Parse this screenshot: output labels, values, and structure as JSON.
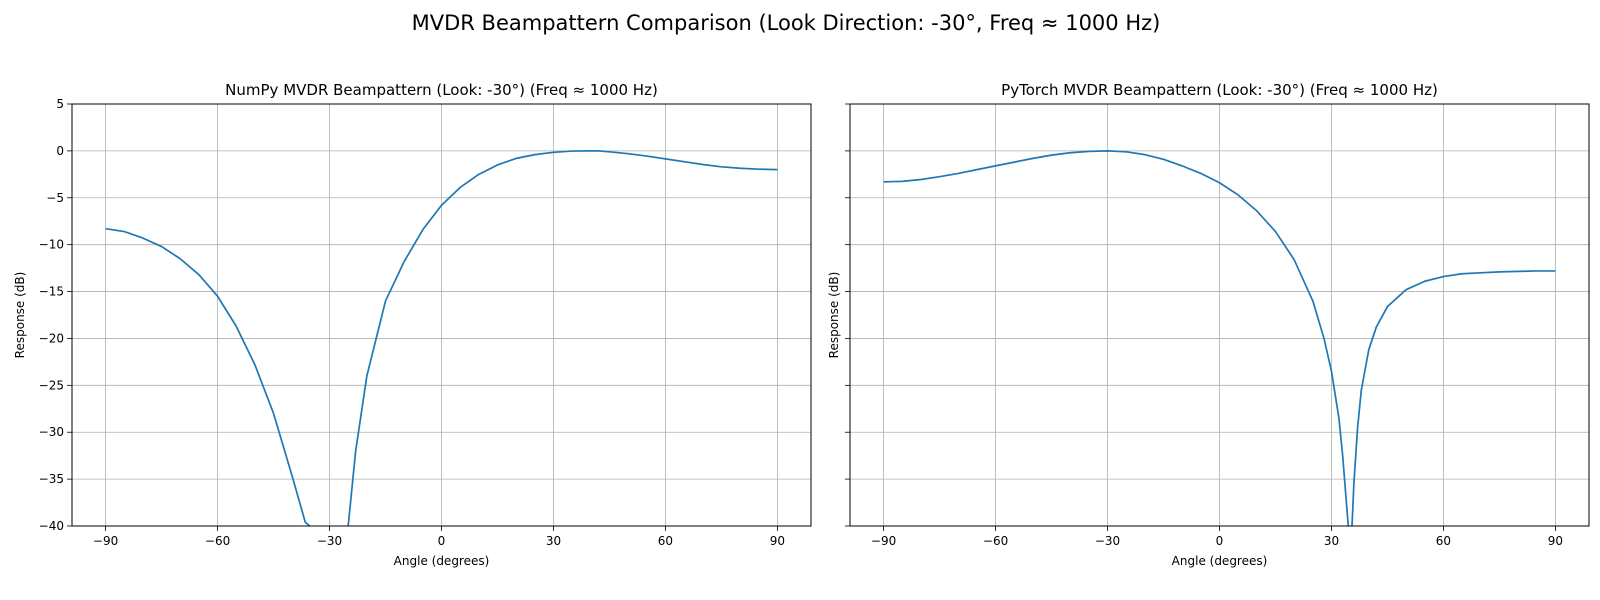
{
  "figure": {
    "title": "MVDR Beampattern Comparison (Look Direction: -30°, Freq ≈ 1000 Hz)"
  },
  "chart_data": [
    {
      "type": "line",
      "title": "NumPy MVDR Beampattern (Look: -30°) (Freq ≈ 1000 Hz)",
      "xlabel": "Angle (degrees)",
      "ylabel": "Response (dB)",
      "xlim": [
        -99,
        99
      ],
      "ylim": [
        -40,
        5
      ],
      "xticks": [
        -90,
        -60,
        -30,
        0,
        30,
        60,
        90
      ],
      "xtick_labels": [
        "−90",
        "−60",
        "−30",
        "0",
        "30",
        "60",
        "90"
      ],
      "yticks": [
        5,
        0,
        -5,
        -10,
        -15,
        -20,
        -25,
        -30,
        -35,
        -40
      ],
      "ytick_labels": [
        "5",
        "0",
        "−5",
        "−10",
        "−15",
        "−20",
        "−25",
        "−30",
        "−35",
        "−40"
      ],
      "y_tick_labels_visible": true,
      "grid": true,
      "color": "#1f77b4",
      "series": [
        {
          "x": [
            -90,
            -85,
            -80,
            -75,
            -70,
            -65,
            -60,
            -55,
            -50,
            -45,
            -40,
            -38,
            -36.5,
            -35.3,
            null,
            -25,
            -23,
            -20,
            -15,
            -10,
            -5,
            0,
            5,
            10,
            15,
            20,
            25,
            30,
            35,
            40,
            42,
            45,
            50,
            55,
            60,
            65,
            70,
            75,
            80,
            85,
            90
          ],
          "y": [
            -8.3,
            -8.6,
            -9.3,
            -10.2,
            -11.5,
            -13.2,
            -15.5,
            -18.7,
            -22.8,
            -28.0,
            -34.7,
            -37.5,
            -39.6,
            -40,
            null,
            -40,
            -32.0,
            -24.0,
            -16.0,
            -11.8,
            -8.4,
            -5.8,
            -3.9,
            -2.5,
            -1.5,
            -0.8,
            -0.4,
            -0.15,
            -0.02,
            0,
            0,
            -0.1,
            -0.3,
            -0.55,
            -0.85,
            -1.15,
            -1.45,
            -1.7,
            -1.85,
            -1.95,
            -2.0
          ]
        }
      ]
    },
    {
      "type": "line",
      "title": "PyTorch MVDR Beampattern (Look: -30°) (Freq ≈ 1000 Hz)",
      "xlabel": "Angle (degrees)",
      "ylabel": "Response (dB)",
      "xlim": [
        -99,
        99
      ],
      "ylim": [
        -40,
        5
      ],
      "xticks": [
        -90,
        -60,
        -30,
        0,
        30,
        60,
        90
      ],
      "xtick_labels": [
        "−90",
        "−60",
        "−30",
        "0",
        "30",
        "60",
        "90"
      ],
      "yticks": [
        5,
        0,
        -5,
        -10,
        -15,
        -20,
        -25,
        -30,
        -35,
        -40
      ],
      "ytick_labels": [],
      "y_tick_labels_visible": false,
      "grid": true,
      "color": "#1f77b4",
      "series": [
        {
          "x": [
            -90,
            -85,
            -80,
            -75,
            -70,
            -65,
            -60,
            -55,
            -50,
            -45,
            -40,
            -35,
            -30,
            -25,
            -20,
            -15,
            -10,
            -5,
            0,
            5,
            10,
            15,
            20,
            25,
            28,
            30,
            32,
            33,
            34,
            34.5,
            null,
            35.5,
            36,
            37,
            38,
            40,
            42,
            45,
            50,
            55,
            60,
            65,
            70,
            75,
            80,
            85,
            90
          ],
          "y": [
            -3.3,
            -3.25,
            -3.05,
            -2.75,
            -2.4,
            -2.0,
            -1.6,
            -1.2,
            -0.8,
            -0.45,
            -0.2,
            -0.05,
            0,
            -0.1,
            -0.4,
            -0.9,
            -1.6,
            -2.4,
            -3.4,
            -4.7,
            -6.4,
            -8.6,
            -11.6,
            -16.0,
            -20.0,
            -23.5,
            -28.5,
            -32.5,
            -37.5,
            -40,
            null,
            -40,
            -35.5,
            -29.5,
            -25.5,
            -21.2,
            -18.8,
            -16.6,
            -14.8,
            -13.9,
            -13.4,
            -13.1,
            -13.0,
            -12.9,
            -12.85,
            -12.8,
            -12.8
          ]
        }
      ]
    }
  ]
}
